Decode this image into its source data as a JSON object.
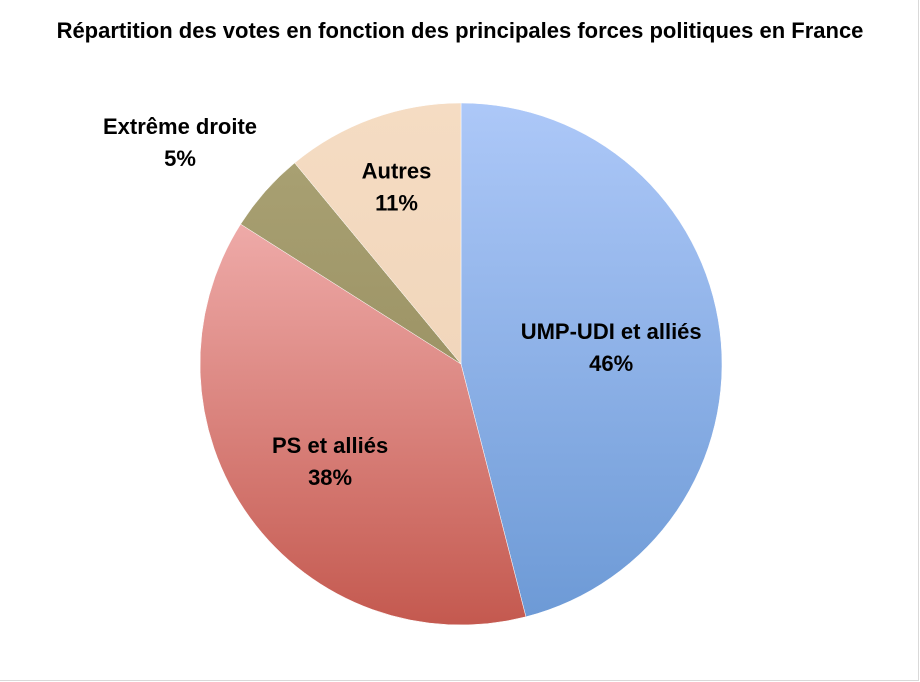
{
  "chart_data": {
    "type": "pie",
    "title": "Répartition des votes en fonction des principales forces politiques en France",
    "slices": [
      {
        "label": "UMP-UDI et alliés",
        "value": 46,
        "value_label": "46%",
        "color_light": "#adc8f8",
        "color_dark": "#6d9ad6"
      },
      {
        "label": "PS et alliés",
        "value": 38,
        "value_label": "38%",
        "color_light": "#eeaaa8",
        "color_dark": "#c4594f"
      },
      {
        "label": "Extrême droite",
        "value": 5,
        "value_label": "5%",
        "color_light": "#a8a072",
        "color_dark": "#9d9466"
      },
      {
        "label": "Autres",
        "value": 11,
        "value_label": "11%",
        "color_light": "#f5dcc3",
        "color_dark": "#f1d6bb"
      }
    ],
    "start_angle": "top",
    "direction": "clockwise",
    "legend": "none"
  }
}
